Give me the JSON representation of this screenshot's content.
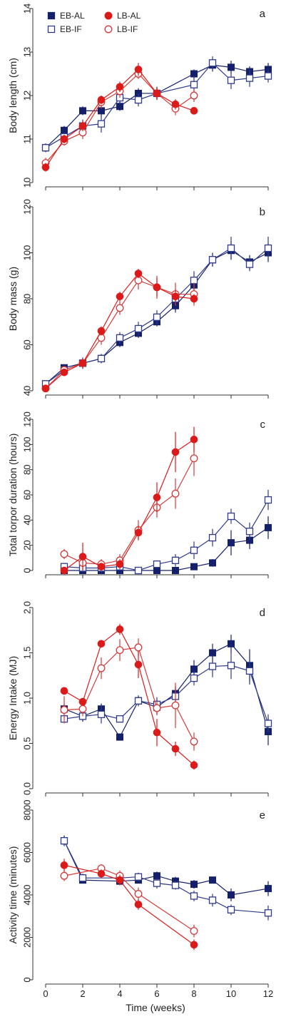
{
  "figure": {
    "xlabel": "Time (weeks)"
  },
  "legend": [
    {
      "label": "EB-AL",
      "color": "#14206b",
      "marker": "square",
      "filled": true
    },
    {
      "label": "LB-AL",
      "color": "#dd1a1a",
      "marker": "circle",
      "filled": true
    },
    {
      "label": "EB-IF",
      "color": "#2e3a8c",
      "marker": "square",
      "filled": false
    },
    {
      "label": "LB-IF",
      "color": "#d63a3a",
      "marker": "circle",
      "filled": false
    }
  ],
  "chart_data": [
    {
      "type": "line",
      "panel_label": "a",
      "ylabel": "Body length (cm)",
      "xlim": [
        0,
        12
      ],
      "ylim": [
        10,
        14
      ],
      "xticks": [
        "0",
        "2",
        "4",
        "6",
        "8",
        "10",
        "12"
      ],
      "yticks": [
        "10",
        "11",
        "12",
        "13",
        "14"
      ],
      "series": [
        {
          "name": "EB-AL",
          "x": [
            0,
            1,
            2,
            3,
            4,
            5,
            6,
            8,
            9,
            10,
            11,
            12
          ],
          "y": [
            10.8,
            11.2,
            11.65,
            11.65,
            11.75,
            12.05,
            12.05,
            12.5,
            12.7,
            12.65,
            12.55,
            12.6
          ],
          "err": [
            0.1,
            0.1,
            0.1,
            0.15,
            0.1,
            0.12,
            0.15,
            0.1,
            0.15,
            0.15,
            0.12,
            0.15
          ]
        },
        {
          "name": "EB-IF",
          "x": [
            0,
            1,
            2,
            3,
            4,
            5,
            6,
            8,
            9,
            10,
            11,
            12
          ],
          "y": [
            10.8,
            11.05,
            11.3,
            11.35,
            11.95,
            11.9,
            12.05,
            12.25,
            12.75,
            12.35,
            12.4,
            12.45
          ],
          "err": [
            0.1,
            0.1,
            0.15,
            0.2,
            0.12,
            0.15,
            0.15,
            0.2,
            0.15,
            0.2,
            0.2,
            0.15
          ]
        },
        {
          "name": "LB-AL",
          "x": [
            0,
            1,
            2,
            3,
            4,
            5,
            6,
            7,
            8
          ],
          "y": [
            10.35,
            11.0,
            11.3,
            11.9,
            12.2,
            12.6,
            12.05,
            11.8,
            11.65
          ],
          "err": [
            0.1,
            0.1,
            0.12,
            0.1,
            0.12,
            0.15,
            0.12,
            0.12,
            0.08
          ]
        },
        {
          "name": "LB-IF",
          "x": [
            0,
            1,
            2,
            3,
            4,
            5,
            6,
            7,
            8
          ],
          "y": [
            10.45,
            10.95,
            11.15,
            11.85,
            12.1,
            12.5,
            12.05,
            11.7,
            12.0
          ],
          "err": [
            0.12,
            0.1,
            0.15,
            0.15,
            0.15,
            0.12,
            0.15,
            0.15,
            0.15
          ]
        }
      ]
    },
    {
      "type": "line",
      "panel_label": "b",
      "ylabel": "Body mass (g)",
      "xlim": [
        0,
        12
      ],
      "ylim": [
        40,
        120
      ],
      "xticks": [
        "0",
        "2",
        "4",
        "6",
        "8",
        "10",
        "12"
      ],
      "yticks": [
        "40",
        "60",
        "80",
        "100",
        "120"
      ],
      "series": [
        {
          "name": "EB-AL",
          "x": [
            0,
            1,
            2,
            3,
            4,
            5,
            6,
            7,
            8,
            9,
            10,
            11,
            12
          ],
          "y": [
            43,
            50,
            52,
            54,
            61,
            65,
            70,
            77,
            86,
            97,
            101,
            96,
            100
          ],
          "err": [
            1,
            1.5,
            2,
            2,
            2,
            2,
            2,
            3,
            3,
            3,
            4,
            3,
            4
          ]
        },
        {
          "name": "EB-IF",
          "x": [
            0,
            1,
            2,
            3,
            4,
            5,
            6,
            7,
            8,
            9,
            10,
            11,
            12
          ],
          "y": [
            43,
            49,
            52,
            54,
            63,
            67,
            72,
            80,
            88,
            97,
            102,
            95,
            102
          ],
          "err": [
            1,
            2,
            2.5,
            2,
            2.5,
            3,
            3,
            3,
            4,
            3,
            5,
            3,
            5
          ]
        },
        {
          "name": "LB-AL",
          "x": [
            0,
            1,
            2,
            3,
            4,
            5,
            6,
            7,
            8
          ],
          "y": [
            41,
            48,
            52,
            66,
            81,
            91,
            85,
            81,
            80
          ],
          "err": [
            1,
            1,
            2,
            2,
            2,
            2,
            4,
            3,
            2
          ]
        },
        {
          "name": "LB-IF",
          "x": [
            0,
            1,
            2,
            3,
            4,
            5,
            6,
            7,
            8
          ],
          "y": [
            41,
            49,
            52,
            63,
            76,
            88,
            85,
            82,
            82
          ],
          "err": [
            1,
            1.5,
            2,
            3,
            3,
            4,
            5,
            5,
            5
          ]
        }
      ]
    },
    {
      "type": "line",
      "panel_label": "c",
      "ylabel": "Total torpor duration (hours)",
      "xlim": [
        0,
        12
      ],
      "ylim": [
        0,
        120
      ],
      "xticks": [
        "0",
        "2",
        "4",
        "6",
        "8",
        "10",
        "12"
      ],
      "yticks": [
        "0",
        "20",
        "40",
        "60",
        "80",
        "100",
        "120"
      ],
      "series": [
        {
          "name": "EB-AL",
          "x": [
            1,
            2,
            3,
            4,
            5,
            6,
            7,
            8,
            9,
            10,
            11,
            12
          ],
          "y": [
            0,
            0,
            0,
            0,
            0,
            0,
            0,
            3,
            6,
            22,
            24,
            34
          ],
          "err": [
            1,
            1,
            1,
            1,
            1,
            1,
            1,
            1.5,
            3,
            10,
            7,
            9
          ]
        },
        {
          "name": "EB-IF",
          "x": [
            1,
            2,
            3,
            4,
            5,
            6,
            7,
            8,
            9,
            10,
            11,
            12
          ],
          "y": [
            3,
            2,
            2,
            3,
            0,
            5,
            8,
            16,
            26,
            43,
            31,
            56
          ],
          "err": [
            3,
            2,
            2,
            3,
            1,
            3,
            5,
            7,
            7,
            6,
            7,
            8
          ]
        },
        {
          "name": "LB-AL",
          "x": [
            1,
            2,
            3,
            4,
            5,
            6,
            7,
            8
          ],
          "y": [
            0,
            11,
            3,
            5,
            30,
            58,
            94,
            104
          ],
          "err": [
            1,
            11,
            3,
            4,
            6,
            12,
            16,
            10
          ]
        },
        {
          "name": "LB-IF",
          "x": [
            1,
            2,
            3,
            4,
            5,
            6,
            7,
            8
          ],
          "y": [
            13,
            6,
            5,
            8,
            32,
            50,
            61,
            89
          ],
          "err": [
            4,
            6,
            4,
            5,
            8,
            8,
            12,
            14
          ]
        }
      ]
    },
    {
      "type": "line",
      "panel_label": "d",
      "ylabel": "Energy Intake (MJ)",
      "xlim": [
        0,
        12
      ],
      "ylim": [
        0,
        2
      ],
      "xticks": [
        "0",
        "2",
        "4",
        "6",
        "8",
        "10",
        "12"
      ],
      "yticks": [
        "0.0",
        "0.5",
        "1.0",
        "1.5",
        "2.0"
      ],
      "series": [
        {
          "name": "EB-AL",
          "x": [
            1,
            2,
            3,
            4,
            5,
            6,
            7,
            8,
            9,
            10,
            11,
            12
          ],
          "y": [
            0.88,
            0.8,
            0.88,
            0.57,
            0.97,
            0.9,
            1.05,
            1.32,
            1.5,
            1.6,
            1.36,
            0.63
          ],
          "err": [
            0.06,
            0.06,
            0.06,
            0.03,
            0.05,
            0.08,
            0.08,
            0.1,
            0.1,
            0.1,
            0.18,
            0.15
          ]
        },
        {
          "name": "EB-IF",
          "x": [
            1,
            2,
            3,
            4,
            5,
            6,
            7,
            8,
            9,
            10,
            11,
            12
          ],
          "y": [
            0.77,
            0.8,
            0.82,
            0.77,
            0.97,
            0.93,
            1.02,
            1.22,
            1.35,
            1.36,
            1.3,
            0.72
          ],
          "err": [
            0.04,
            0.06,
            0.1,
            0.03,
            0.06,
            0.08,
            0.1,
            0.08,
            0.12,
            0.15,
            0.15,
            0.1
          ]
        },
        {
          "name": "LB-AL",
          "x": [
            1,
            2,
            3,
            4,
            5,
            6,
            7,
            8
          ],
          "y": [
            1.08,
            0.96,
            1.6,
            1.76,
            1.37,
            0.62,
            0.44,
            0.26
          ],
          "err": [
            0.03,
            0.03,
            0.03,
            0.06,
            0.15,
            0.15,
            0.08,
            0.05
          ]
        },
        {
          "name": "LB-IF",
          "x": [
            1,
            2,
            3,
            4,
            5,
            6,
            7,
            8
          ],
          "y": [
            0.87,
            0.88,
            1.33,
            1.53,
            1.56,
            0.89,
            0.92,
            0.52
          ],
          "err": [
            0.15,
            0.08,
            0.12,
            0.12,
            0.1,
            0.08,
            0.25,
            0.1
          ]
        }
      ]
    },
    {
      "type": "line",
      "panel_label": "e",
      "ylabel": "Activity time (minutes)",
      "xlim": [
        0,
        12
      ],
      "ylim": [
        0,
        8000
      ],
      "xticks": [
        "0",
        "2",
        "4",
        "6",
        "8",
        "10",
        "12"
      ],
      "yticks": [
        "0",
        "2000",
        "4000",
        "6000",
        "8000"
      ],
      "series": [
        {
          "name": "EB-AL",
          "x": [
            1,
            2,
            4,
            5,
            6,
            7,
            8,
            9,
            10,
            12
          ],
          "y": [
            6550,
            4700,
            4650,
            4700,
            4900,
            4650,
            4500,
            4700,
            4000,
            4300
          ],
          "err": [
            250,
            150,
            150,
            150,
            200,
            200,
            200,
            150,
            300,
            350
          ]
        },
        {
          "name": "EB-IF",
          "x": [
            1,
            2,
            4,
            5,
            6,
            7,
            8,
            9,
            10,
            12
          ],
          "y": [
            6550,
            4800,
            4800,
            4850,
            4550,
            4450,
            3950,
            3750,
            3300,
            3150
          ],
          "err": [
            250,
            200,
            250,
            200,
            250,
            200,
            250,
            300,
            250,
            350
          ]
        },
        {
          "name": "LB-AL",
          "x": [
            1,
            3,
            4,
            5,
            8
          ],
          "y": [
            5400,
            5000,
            4700,
            3550,
            1650
          ],
          "err": [
            300,
            200,
            250,
            250,
            250
          ]
        },
        {
          "name": "LB-IF",
          "x": [
            1,
            3,
            4,
            5,
            8
          ],
          "y": [
            4900,
            5250,
            4900,
            4050,
            2300
          ],
          "err": [
            250,
            200,
            250,
            300,
            300
          ]
        }
      ]
    }
  ]
}
